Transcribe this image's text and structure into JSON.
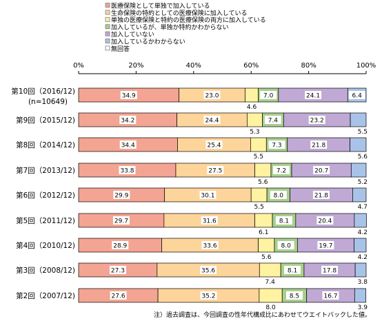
{
  "chart_data": {
    "type": "bar",
    "orientation": "horizontal",
    "stacked": true,
    "percent_stacked": true,
    "legend": [
      {
        "name": "医療保険として単独で加入している",
        "color": "#f4a492"
      },
      {
        "name": "生命保険の特約としての医療保険に加入している",
        "color": "#fdd49a"
      },
      {
        "name": "単独の医療保険と特約の医療保険の両方に加入している",
        "color": "#fff2a0"
      },
      {
        "name": "加入しているが、単独か特約かわからない",
        "color": "#a8d08d"
      },
      {
        "name": "加入していない",
        "color": "#c0a9d4"
      },
      {
        "name": "加入しているかわからない",
        "color": "#a9c3e8"
      },
      {
        "name": "無回答",
        "color": "#ffffff"
      }
    ],
    "legend_placement": "top",
    "x_ticks": [
      "0%",
      "20%",
      "40%",
      "60%",
      "80%",
      "100%"
    ],
    "xlim": [
      0,
      100
    ],
    "grid": false,
    "categories": [
      {
        "label": "第10回（2016/12)",
        "sublabel": "(n=10649)"
      },
      {
        "label": "第9回（2015/12)",
        "sublabel": ""
      },
      {
        "label": "第8回（2014/12)",
        "sublabel": ""
      },
      {
        "label": "第7回（2013/12)",
        "sublabel": ""
      },
      {
        "label": "第6回（2012/12)",
        "sublabel": ""
      },
      {
        "label": "第5回（2011/12)",
        "sublabel": ""
      },
      {
        "label": "第4回（2010/12)",
        "sublabel": ""
      },
      {
        "label": "第3回（2008/12)",
        "sublabel": ""
      },
      {
        "label": "第2回（2007/12)",
        "sublabel": ""
      }
    ],
    "series": [
      {
        "name": "医療保険として単独で加入している",
        "values": [
          34.9,
          34.2,
          34.4,
          33.8,
          29.9,
          29.7,
          28.9,
          27.3,
          27.6
        ]
      },
      {
        "name": "生命保険の特約としての医療保険に加入している",
        "values": [
          23.0,
          24.4,
          25.4,
          27.5,
          30.1,
          31.6,
          33.6,
          35.6,
          35.2
        ]
      },
      {
        "name": "単独の医療保険と特約の医療保険の両方に加入している",
        "values": [
          4.6,
          5.3,
          5.5,
          5.6,
          5.5,
          6.1,
          5.6,
          7.4,
          8.0
        ]
      },
      {
        "name": "加入しているが、単独か特約かわからない",
        "values": [
          7.0,
          7.4,
          7.3,
          7.2,
          8.0,
          8.1,
          8.0,
          8.1,
          8.5
        ]
      },
      {
        "name": "加入していない",
        "values": [
          24.1,
          23.2,
          21.8,
          20.7,
          21.8,
          20.4,
          19.7,
          17.8,
          16.7
        ]
      },
      {
        "name": "加入しているかわからない",
        "values": [
          6.4,
          5.5,
          5.6,
          5.2,
          4.7,
          4.2,
          4.2,
          3.8,
          3.9
        ]
      },
      {
        "name": "無回答",
        "values": [
          0,
          0,
          0,
          0,
          0,
          0,
          0,
          0,
          0
        ]
      }
    ],
    "value_labels": [
      [
        "34.9",
        "23.0",
        "4.6",
        "7.0",
        "24.1",
        "6.4"
      ],
      [
        "34.2",
        "24.4",
        "5.3",
        "7.4",
        "23.2",
        "5.5"
      ],
      [
        "34.4",
        "25.4",
        "5.5",
        "7.3",
        "21.8",
        "5.6"
      ],
      [
        "33.8",
        "27.5",
        "5.6",
        "7.2",
        "20.7",
        "5.2"
      ],
      [
        "29.9",
        "30.1",
        "5.5",
        "8.0",
        "21.8",
        "4.7"
      ],
      [
        "29.7",
        "31.6",
        "6.1",
        "8.1",
        "20.4",
        "4.2"
      ],
      [
        "28.9",
        "33.6",
        "5.6",
        "8.0",
        "19.7",
        "4.2"
      ],
      [
        "27.3",
        "35.6",
        "7.4",
        "8.1",
        "17.8",
        "3.8"
      ],
      [
        "27.6",
        "35.2",
        "8.0",
        "8.5",
        "16.7",
        "3.9"
      ]
    ],
    "footnote": "注）過去調査は、今回調査の性年代構成比にあわせてウエイトバックした値。"
  }
}
